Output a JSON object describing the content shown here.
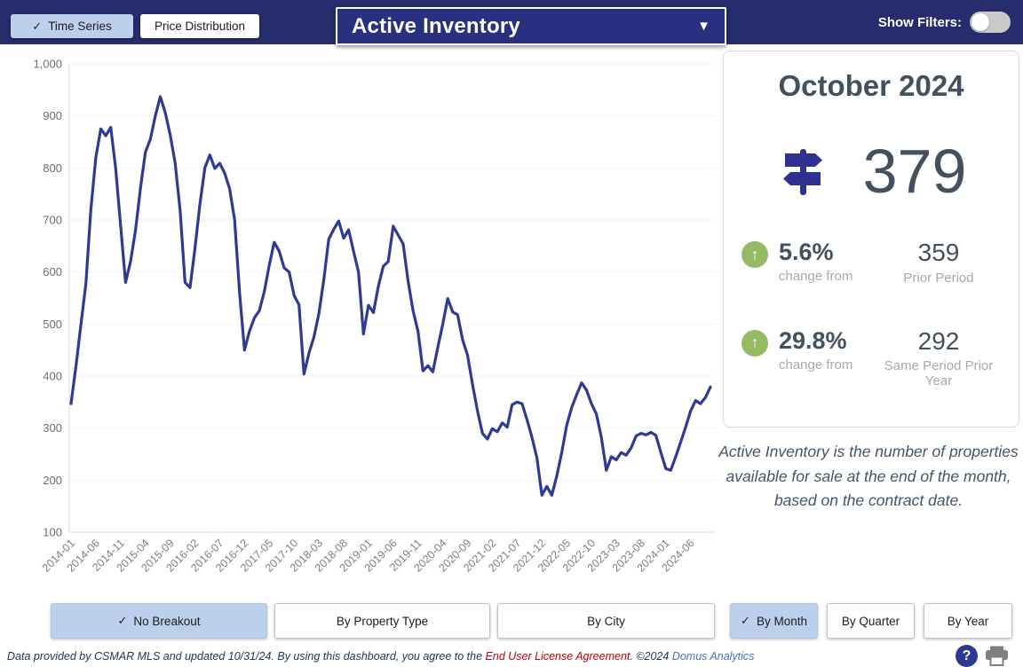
{
  "icons": {
    "check": "✓",
    "caret": "▼",
    "up_arrow": "↑",
    "question_mark": "?"
  },
  "top_bar": {
    "time_series_label": "Time Series",
    "price_distribution_label": "Price Distribution",
    "metric_dropdown_value": "Active Inventory",
    "show_filters_label": "Show Filters:"
  },
  "stats_panel": {
    "title": "October 2024",
    "current_value": "379",
    "changes": [
      {
        "percent": "5.6%",
        "label": "change from",
        "value": "359",
        "value_label": "Prior Period"
      },
      {
        "percent": "29.8%",
        "label": "change from",
        "value": "292",
        "value_label": "Same Period Prior Year"
      }
    ],
    "description": "Active Inventory is the number of properties available for sale at the end of the month, based on the contract date."
  },
  "breakout_buttons": [
    {
      "label": "No Breakout",
      "selected": true
    },
    {
      "label": "By Property Type",
      "selected": false
    },
    {
      "label": "By City",
      "selected": false
    }
  ],
  "period_buttons": [
    {
      "label": "By Month",
      "selected": true
    },
    {
      "label": "By Quarter",
      "selected": false
    },
    {
      "label": "By Year",
      "selected": false
    }
  ],
  "footer": {
    "text_1": "Data provided by CSMAR MLS and updated 10/31/24.  By using this dashboard, you agree to the ",
    "eula_link": "End User License Agreement",
    "text_2": ".  ©2024 ",
    "brand_link": "Domus Analytics"
  },
  "chart_data": {
    "type": "line",
    "title": "Active Inventory time series",
    "frequency": "monthly",
    "start": "2014-01",
    "end": "2024-10",
    "ylim": [
      100,
      1000
    ],
    "y_ticks": [
      100,
      200,
      300,
      400,
      500,
      600,
      700,
      800,
      900,
      1000
    ],
    "x_tick_labels": [
      "2014-01",
      "2014-06",
      "2014-11",
      "2015-04",
      "2015-09",
      "2016-02",
      "2016-07",
      "2016-12",
      "2017-05",
      "2017-10",
      "2018-03",
      "2018-08",
      "2019-01",
      "2019-06",
      "2019-11",
      "2020-04",
      "2020-09",
      "2021-02",
      "2021-07",
      "2021-12",
      "2022-05",
      "2022-10",
      "2023-03",
      "2023-08",
      "2024-01",
      "2024-06"
    ],
    "x_tick_month_step": 5,
    "line_color": "#2f3a93",
    "grid": true,
    "legend": "none",
    "values": [
      347,
      420,
      500,
      577,
      720,
      820,
      875,
      862,
      878,
      800,
      690,
      580,
      620,
      680,
      760,
      830,
      855,
      900,
      937,
      907,
      864,
      810,
      719,
      580,
      570,
      645,
      730,
      800,
      825,
      799,
      809,
      790,
      760,
      700,
      560,
      450,
      486,
      512,
      526,
      563,
      614,
      657,
      640,
      608,
      600,
      555,
      537,
      404,
      444,
      475,
      520,
      586,
      663,
      682,
      698,
      665,
      681,
      640,
      600,
      481,
      536,
      522,
      572,
      611,
      620,
      688,
      671,
      654,
      583,
      526,
      486,
      410,
      420,
      408,
      455,
      500,
      549,
      523,
      518,
      470,
      440,
      384,
      333,
      290,
      279,
      299,
      293,
      310,
      302,
      345,
      350,
      347,
      316,
      282,
      242,
      171,
      188,
      171,
      208,
      253,
      305,
      339,
      364,
      387,
      373,
      347,
      327,
      282,
      219,
      245,
      239,
      253,
      248,
      262,
      285,
      290,
      287,
      292,
      286,
      253,
      222,
      219,
      245,
      273,
      302,
      333,
      353,
      347,
      359,
      379
    ]
  }
}
